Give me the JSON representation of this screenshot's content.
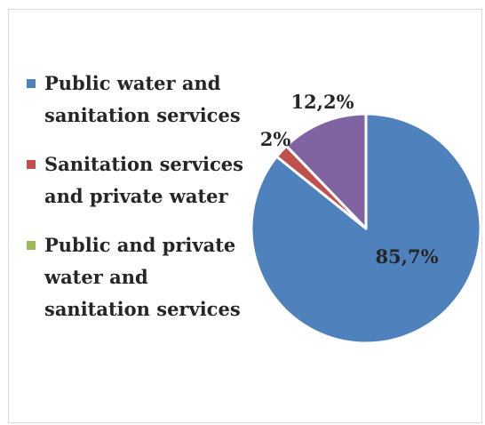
{
  "chart_data": {
    "type": "pie",
    "title": "",
    "legend_position": "left",
    "slices": [
      {
        "name": "Public water and sanitation services",
        "value": 85.7,
        "label": "85,7%",
        "color": "#4f81bd"
      },
      {
        "name": "Sanitation services and private water",
        "value": 2,
        "label": "2%",
        "color": "#c0504d"
      },
      {
        "name": "Public and private water and sanitation services",
        "value": 12.2,
        "label": "12,2%",
        "color": "#8064a2"
      }
    ],
    "legend": [
      {
        "label": "Public water and sanitation services",
        "color": "#4f81bd"
      },
      {
        "label": "Sanitation services and private water",
        "color": "#c0504d"
      },
      {
        "label": "Public and private water and sanitation services",
        "color": "#9bbb59"
      }
    ]
  }
}
